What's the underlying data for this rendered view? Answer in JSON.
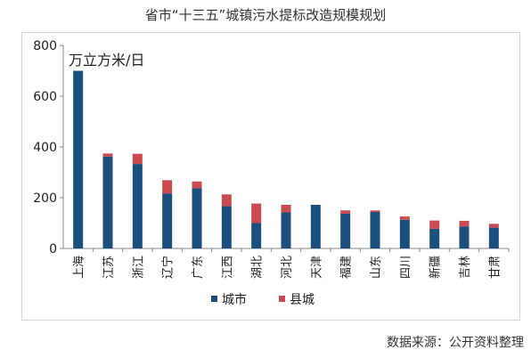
{
  "title": "省市“十三五”城镇污水提标改造规模规划",
  "source": "数据来源：公开资料整理",
  "colors": {
    "city": "#1b4f7d",
    "county": "#cb4a4f",
    "axis": "#888888",
    "text": "#222222"
  },
  "chart_data": {
    "type": "bar",
    "stacked": true,
    "unit_label": "万立方米/日",
    "ylim": [
      0,
      800
    ],
    "yticks": [
      0,
      200,
      400,
      600,
      800
    ],
    "grid": false,
    "legend_position": "bottom",
    "categories": [
      "上海",
      "江苏",
      "浙江",
      "辽宁",
      "广东",
      "江西",
      "湖北",
      "河北",
      "天津",
      "福建",
      "山东",
      "四川",
      "新疆",
      "吉林",
      "甘肃"
    ],
    "series": [
      {
        "name": "城市",
        "values": [
          700,
          362,
          333,
          217,
          237,
          167,
          100,
          142,
          172,
          137,
          144,
          113,
          78,
          87,
          82
        ]
      },
      {
        "name": "县城",
        "values": [
          0,
          12,
          40,
          52,
          27,
          46,
          77,
          30,
          0,
          13,
          6,
          13,
          32,
          22,
          15
        ]
      }
    ]
  }
}
